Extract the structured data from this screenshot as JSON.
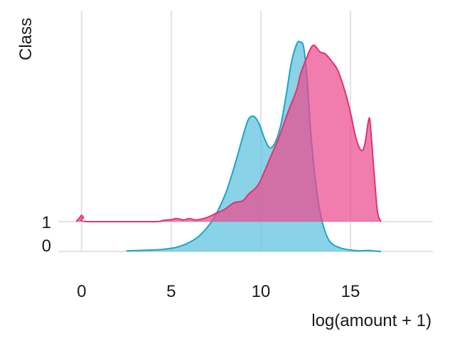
{
  "chart_data": {
    "type": "area",
    "chart_kind": "ridgeline-density",
    "title": "",
    "xlabel": "log(amount + 1)",
    "ylabel": "Class",
    "xlim": [
      -1.3,
      19.6
    ],
    "x_ticks": [
      0,
      5,
      10,
      15
    ],
    "grid": {
      "vertical": true,
      "horizontal": false
    },
    "legend": "none",
    "categories": [
      "0",
      "1"
    ],
    "series": [
      {
        "category": "0",
        "color": "#5bc0de",
        "line_color": "#1aa7c4",
        "peak_height": 1.0,
        "points": [
          [
            2.5,
            0.003
          ],
          [
            3.5,
            0.006
          ],
          [
            4.5,
            0.01
          ],
          [
            5.5,
            0.025
          ],
          [
            6.5,
            0.07
          ],
          [
            7.3,
            0.15
          ],
          [
            8.0,
            0.27
          ],
          [
            8.5,
            0.4
          ],
          [
            9.0,
            0.55
          ],
          [
            9.3,
            0.63
          ],
          [
            9.6,
            0.645
          ],
          [
            9.9,
            0.61
          ],
          [
            10.2,
            0.54
          ],
          [
            10.5,
            0.495
          ],
          [
            10.8,
            0.52
          ],
          [
            11.1,
            0.6
          ],
          [
            11.4,
            0.74
          ],
          [
            11.7,
            0.9
          ],
          [
            12.0,
            0.99
          ],
          [
            12.2,
            1.0
          ],
          [
            12.4,
            0.97
          ],
          [
            12.6,
            0.8
          ],
          [
            12.8,
            0.55
          ],
          [
            13.1,
            0.3
          ],
          [
            13.4,
            0.15
          ],
          [
            13.7,
            0.07
          ],
          [
            14.0,
            0.035
          ],
          [
            14.5,
            0.015
          ],
          [
            15.0,
            0.007
          ],
          [
            15.5,
            0.003
          ],
          [
            16.0,
            0.005
          ],
          [
            16.4,
            0.002
          ],
          [
            16.7,
            0.0
          ]
        ]
      },
      {
        "category": "1",
        "color": "#ec4a8f",
        "line_color": "#e0336f",
        "peak_height": 0.84,
        "points": [
          [
            -0.3,
            0.0
          ],
          [
            -0.1,
            0.02
          ],
          [
            0.0,
            0.03
          ],
          [
            0.1,
            0.02
          ],
          [
            0.3,
            0.0
          ],
          [
            4.0,
            0.0
          ],
          [
            4.5,
            0.005
          ],
          [
            5.0,
            0.01
          ],
          [
            5.3,
            0.015
          ],
          [
            5.7,
            0.008
          ],
          [
            6.0,
            0.015
          ],
          [
            6.4,
            0.008
          ],
          [
            7.0,
            0.02
          ],
          [
            7.5,
            0.04
          ],
          [
            8.0,
            0.06
          ],
          [
            8.5,
            0.09
          ],
          [
            9.0,
            0.1
          ],
          [
            9.3,
            0.13
          ],
          [
            9.7,
            0.16
          ],
          [
            10.0,
            0.2
          ],
          [
            10.5,
            0.3
          ],
          [
            11.0,
            0.4
          ],
          [
            11.5,
            0.52
          ],
          [
            12.0,
            0.63
          ],
          [
            12.2,
            0.7
          ],
          [
            12.5,
            0.77
          ],
          [
            12.8,
            0.83
          ],
          [
            13.0,
            0.84
          ],
          [
            13.3,
            0.81
          ],
          [
            13.6,
            0.8
          ],
          [
            14.0,
            0.76
          ],
          [
            14.3,
            0.72
          ],
          [
            14.7,
            0.62
          ],
          [
            15.0,
            0.52
          ],
          [
            15.3,
            0.4
          ],
          [
            15.6,
            0.34
          ],
          [
            15.8,
            0.37
          ],
          [
            16.0,
            0.48
          ],
          [
            16.1,
            0.47
          ],
          [
            16.3,
            0.25
          ],
          [
            16.5,
            0.05
          ],
          [
            16.7,
            0.0
          ]
        ]
      }
    ]
  }
}
